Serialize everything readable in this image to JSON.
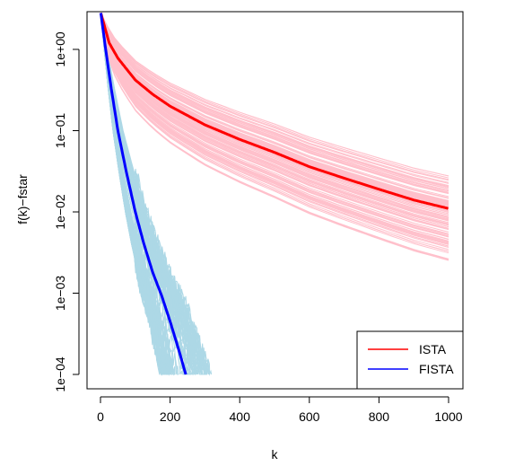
{
  "chart_data": {
    "type": "line",
    "title": "",
    "xlabel": "k",
    "ylabel": "f(k)−fstar",
    "xlim": [
      0,
      1000
    ],
    "ylim_log10": [
      -4.15,
      0.45
    ],
    "yscale": "log",
    "x_ticks": [
      0,
      200,
      400,
      600,
      800,
      1000
    ],
    "x_tick_labels": [
      "0",
      "200",
      "400",
      "600",
      "800",
      "1000"
    ],
    "y_ticks_log10": [
      0,
      -1,
      -2,
      -3,
      -4
    ],
    "y_tick_labels": [
      "1e+00",
      "1e−01",
      "1e−02",
      "1e−03",
      "1e−04"
    ],
    "grid": false,
    "legend_position": "bottom-right",
    "colors": {
      "ista_mean": "#ff0000",
      "ista_runs": "#ffc0cb",
      "fista_mean": "#0000ff",
      "fista_runs": "#add8e6"
    },
    "series": [
      {
        "name": "ISTA",
        "role": "mean",
        "x": [
          1,
          25,
          50,
          100,
          150,
          200,
          300,
          400,
          500,
          600,
          700,
          800,
          900,
          1000
        ],
        "y": [
          2.8,
          1.2,
          0.78,
          0.42,
          0.28,
          0.2,
          0.118,
          0.078,
          0.054,
          0.036,
          0.026,
          0.019,
          0.014,
          0.011
        ]
      },
      {
        "name": "FISTA",
        "role": "mean",
        "x": [
          1,
          15,
          30,
          50,
          75,
          100,
          125,
          150,
          175,
          200,
          225,
          245
        ],
        "y": [
          2.8,
          1.0,
          0.35,
          0.1,
          0.03,
          0.01,
          0.004,
          0.0018,
          0.00095,
          0.00045,
          0.0002,
          0.0001
        ]
      },
      {
        "role": "runs",
        "parent": "ISTA",
        "count": 100,
        "endpoint_range_at_1000": [
          0.0025,
          0.028
        ]
      },
      {
        "role": "runs",
        "parent": "FISTA",
        "count": 100,
        "x_end_range": [
          175,
          320
        ],
        "y_floor": 0.0001
      }
    ]
  }
}
